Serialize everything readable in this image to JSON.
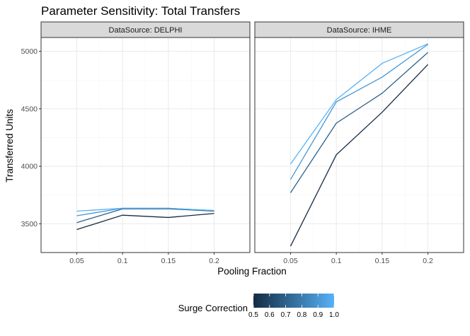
{
  "chart_data": {
    "type": "line",
    "title": "Parameter Sensitivity: Total Transfers",
    "xlabel": "Pooling Fraction",
    "ylabel": "Transferred Units",
    "x": [
      0.05,
      0.1,
      0.15,
      0.2
    ],
    "x_tick_labels": [
      "0.05",
      "0.1",
      "0.15",
      "0.2"
    ],
    "ylim": [
      3250,
      5120
    ],
    "y_ticks": [
      3500,
      4000,
      4500,
      5000
    ],
    "grid": true,
    "facets": [
      {
        "strip": "DataSource: DELPHI",
        "series": [
          {
            "surge": 0.5,
            "values": [
              3450,
              3575,
              3555,
              3590
            ]
          },
          {
            "surge": 0.7,
            "values": [
              3510,
              3630,
              3630,
              3610
            ]
          },
          {
            "surge": 0.9,
            "values": [
              3570,
              3635,
              3635,
              3615
            ]
          },
          {
            "surge": 1.0,
            "values": [
              3610,
              3635,
              3635,
              3615
            ]
          }
        ]
      },
      {
        "strip": "DataSource: IHME",
        "series": [
          {
            "surge": 0.5,
            "values": [
              3305,
              4100,
              4470,
              4885
            ]
          },
          {
            "surge": 0.7,
            "values": [
              3770,
              4375,
              4635,
              4990
            ]
          },
          {
            "surge": 0.9,
            "values": [
              3885,
              4560,
              4775,
              5060
            ]
          },
          {
            "surge": 1.0,
            "values": [
              4020,
              4580,
              4895,
              5065
            ]
          }
        ]
      }
    ],
    "legend": {
      "title": "Surge Correction",
      "position": "bottom",
      "labels": [
        "0.5",
        "0.6",
        "0.7",
        "0.8",
        "0.9",
        "1.0"
      ],
      "color_low": "#132B43",
      "color_high": "#56B1F7"
    }
  },
  "colors": {
    "strip_fill": "#d9d9d9",
    "panel_border": "#333333",
    "grid_major": "#ebebeb",
    "grid_minor": "#f5f5f5"
  }
}
